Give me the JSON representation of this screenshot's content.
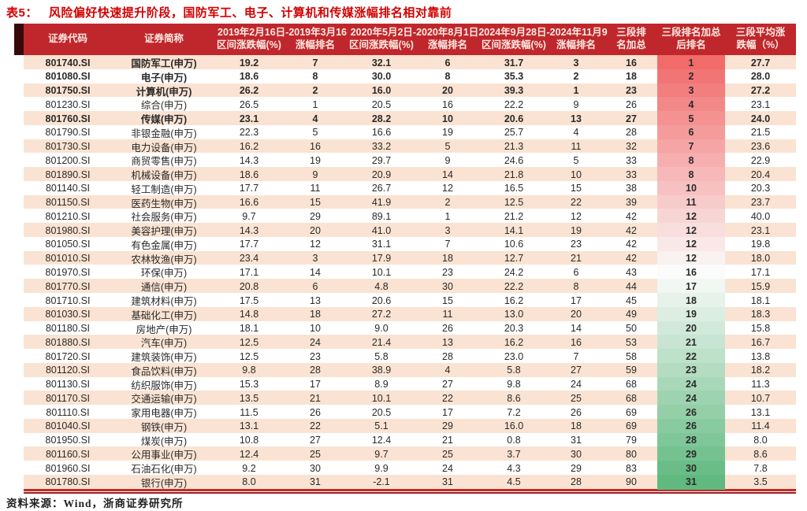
{
  "title": {
    "label": "表5：",
    "text": "风险偏好快速提升阶段，国防军工、电子、计算机和传媒涨幅排名相对靠前"
  },
  "footer": {
    "source": "资料来源：Wind，浙商证券研究所"
  },
  "colors": {
    "header_bg": "#c0272d",
    "header_accent": "#38090b",
    "title_red": "#d40000",
    "row_stripe": "#fae3d2",
    "rank_gradient_top": "#f16b6b",
    "rank_gradient_mid": "#fbfbfb",
    "rank_gradient_bottom": "#60b97f"
  },
  "table": {
    "columns": {
      "code": "证券代码",
      "name": "证券简称",
      "periods": [
        {
          "range": "2019年2月16日-2019年3月16",
          "pct": "区间涨跌幅(%)",
          "rank": "涨幅排名"
        },
        {
          "range": "2020年5月2日-2020年8月1日",
          "pct": "区间涨跌幅(%)",
          "rank": "涨幅排名"
        },
        {
          "range": "2024年9月28日-2024年11月9",
          "pct": "区间涨跌幅(%)",
          "rank": "涨幅排名"
        }
      ],
      "rank_sum_l1": "三段排",
      "rank_sum_l2": "名加总",
      "final_rank_l1": "三段排名加总",
      "final_rank_l2": "后排名",
      "avg_l1": "三段平均涨",
      "avg_l2": "跌幅（%）"
    },
    "bold_rows": [
      0,
      1,
      2,
      4
    ],
    "rows": [
      {
        "c": "801740.SI",
        "n": "国防军工(申万)",
        "v": [
          "19.2",
          "7",
          "32.1",
          "6",
          "31.7",
          "3",
          "16",
          "1",
          "27.7"
        ]
      },
      {
        "c": "801080.SI",
        "n": "电子(申万)",
        "v": [
          "18.6",
          "8",
          "30.0",
          "8",
          "35.3",
          "2",
          "18",
          "2",
          "28.0"
        ]
      },
      {
        "c": "801750.SI",
        "n": "计算机(申万)",
        "v": [
          "26.2",
          "2",
          "16.0",
          "20",
          "39.3",
          "1",
          "23",
          "3",
          "27.2"
        ]
      },
      {
        "c": "801230.SI",
        "n": "综合(申万)",
        "v": [
          "26.5",
          "1",
          "20.5",
          "16",
          "22.2",
          "9",
          "26",
          "4",
          "23.1"
        ]
      },
      {
        "c": "801760.SI",
        "n": "传媒(申万)",
        "v": [
          "23.1",
          "4",
          "28.2",
          "10",
          "20.6",
          "13",
          "27",
          "5",
          "24.0"
        ]
      },
      {
        "c": "801790.SI",
        "n": "非银金融(申万)",
        "v": [
          "22.3",
          "5",
          "16.6",
          "19",
          "25.7",
          "4",
          "28",
          "6",
          "21.5"
        ]
      },
      {
        "c": "801730.SI",
        "n": "电力设备(申万)",
        "v": [
          "16.2",
          "16",
          "33.2",
          "5",
          "21.3",
          "11",
          "32",
          "7",
          "23.6"
        ]
      },
      {
        "c": "801200.SI",
        "n": "商贸零售(申万)",
        "v": [
          "14.3",
          "19",
          "29.7",
          "9",
          "24.6",
          "5",
          "33",
          "8",
          "22.9"
        ]
      },
      {
        "c": "801890.SI",
        "n": "机械设备(申万)",
        "v": [
          "18.6",
          "9",
          "20.9",
          "14",
          "21.8",
          "10",
          "33",
          "8",
          "20.4"
        ]
      },
      {
        "c": "801140.SI",
        "n": "轻工制造(申万)",
        "v": [
          "17.7",
          "11",
          "26.7",
          "12",
          "16.5",
          "15",
          "38",
          "10",
          "20.3"
        ]
      },
      {
        "c": "801150.SI",
        "n": "医药生物(申万)",
        "v": [
          "16.6",
          "15",
          "41.9",
          "2",
          "12.5",
          "22",
          "39",
          "11",
          "23.7"
        ]
      },
      {
        "c": "801210.SI",
        "n": "社会服务(申万)",
        "v": [
          "9.7",
          "29",
          "89.1",
          "1",
          "21.2",
          "12",
          "42",
          "12",
          "40.0"
        ]
      },
      {
        "c": "801980.SI",
        "n": "美容护理(申万)",
        "v": [
          "14.3",
          "20",
          "41.0",
          "3",
          "14.1",
          "19",
          "42",
          "12",
          "23.1"
        ]
      },
      {
        "c": "801050.SI",
        "n": "有色金属(申万)",
        "v": [
          "17.7",
          "12",
          "31.1",
          "7",
          "10.6",
          "23",
          "42",
          "12",
          "19.8"
        ]
      },
      {
        "c": "801010.SI",
        "n": "农林牧渔(申万)",
        "v": [
          "23.4",
          "3",
          "17.9",
          "18",
          "12.7",
          "21",
          "42",
          "12",
          "18.0"
        ]
      },
      {
        "c": "801970.SI",
        "n": "环保(申万)",
        "v": [
          "17.1",
          "14",
          "10.1",
          "23",
          "24.2",
          "6",
          "43",
          "16",
          "17.1"
        ]
      },
      {
        "c": "801770.SI",
        "n": "通信(申万)",
        "v": [
          "20.8",
          "6",
          "4.8",
          "30",
          "22.2",
          "8",
          "44",
          "17",
          "15.9"
        ]
      },
      {
        "c": "801710.SI",
        "n": "建筑材料(申万)",
        "v": [
          "17.5",
          "13",
          "20.6",
          "15",
          "16.2",
          "17",
          "45",
          "18",
          "18.1"
        ]
      },
      {
        "c": "801030.SI",
        "n": "基础化工(申万)",
        "v": [
          "14.8",
          "18",
          "27.2",
          "11",
          "13.0",
          "20",
          "49",
          "19",
          "18.3"
        ]
      },
      {
        "c": "801180.SI",
        "n": "房地产(申万)",
        "v": [
          "18.1",
          "10",
          "9.0",
          "26",
          "20.3",
          "14",
          "50",
          "20",
          "15.8"
        ]
      },
      {
        "c": "801880.SI",
        "n": "汽车(申万)",
        "v": [
          "12.5",
          "24",
          "21.4",
          "13",
          "16.2",
          "16",
          "53",
          "21",
          "16.7"
        ]
      },
      {
        "c": "801720.SI",
        "n": "建筑装饰(申万)",
        "v": [
          "12.5",
          "23",
          "5.8",
          "28",
          "23.0",
          "7",
          "58",
          "22",
          "13.8"
        ]
      },
      {
        "c": "801120.SI",
        "n": "食品饮料(申万)",
        "v": [
          "9.8",
          "28",
          "38.9",
          "4",
          "5.8",
          "27",
          "59",
          "23",
          "18.2"
        ]
      },
      {
        "c": "801130.SI",
        "n": "纺织服饰(申万)",
        "v": [
          "15.3",
          "17",
          "8.9",
          "27",
          "9.8",
          "24",
          "68",
          "24",
          "11.3"
        ]
      },
      {
        "c": "801170.SI",
        "n": "交通运输(申万)",
        "v": [
          "13.5",
          "21",
          "10.1",
          "22",
          "8.6",
          "25",
          "68",
          "24",
          "10.7"
        ]
      },
      {
        "c": "801110.SI",
        "n": "家用电器(申万)",
        "v": [
          "11.5",
          "26",
          "20.5",
          "17",
          "7.2",
          "26",
          "69",
          "26",
          "13.1"
        ]
      },
      {
        "c": "801040.SI",
        "n": "钢铁(申万)",
        "v": [
          "13.1",
          "22",
          "5.1",
          "29",
          "16.0",
          "18",
          "69",
          "26",
          "11.4"
        ]
      },
      {
        "c": "801950.SI",
        "n": "煤炭(申万)",
        "v": [
          "10.8",
          "27",
          "12.4",
          "21",
          "0.8",
          "31",
          "79",
          "28",
          "8.0"
        ]
      },
      {
        "c": "801160.SI",
        "n": "公用事业(申万)",
        "v": [
          "12.4",
          "25",
          "9.7",
          "25",
          "3.7",
          "30",
          "80",
          "29",
          "8.6"
        ]
      },
      {
        "c": "801960.SI",
        "n": "石油石化(申万)",
        "v": [
          "9.2",
          "30",
          "9.9",
          "24",
          "4.3",
          "29",
          "83",
          "30",
          "7.8"
        ]
      },
      {
        "c": "801780.SI",
        "n": "银行(申万)",
        "v": [
          "8.0",
          "31",
          "-2.1",
          "31",
          "4.5",
          "28",
          "90",
          "31",
          "3.5"
        ]
      }
    ]
  }
}
